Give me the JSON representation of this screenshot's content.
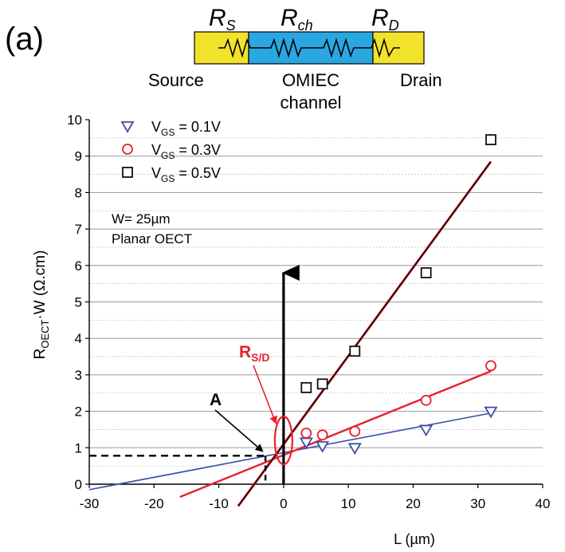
{
  "panel_label": "(a)",
  "schematic": {
    "labels": {
      "rs": "R",
      "rs_sub": "S",
      "rch": "R",
      "rch_sub": "ch",
      "rd": "R",
      "rd_sub": "D"
    },
    "source": "Source",
    "channel_line1": "OMIEC",
    "channel_line2": "channel",
    "drain": "Drain",
    "colors": {
      "contact": "#f2e32a",
      "channel": "#2aa6e0"
    }
  },
  "annotations": {
    "device_line1": "W= 25µm",
    "device_line2": "Planar OECT",
    "rsd": "R",
    "rsd_sub": "S/D",
    "point_a": "A"
  },
  "chart_data": {
    "type": "scatter",
    "xlabel": "L (µm)",
    "ylabel": {
      "main": "R",
      "sub": "OECT",
      "rest": "·W (Ω.cm)"
    },
    "xlim": [
      -30,
      40
    ],
    "ylim": [
      0,
      10
    ],
    "x_ticks": [
      "-30",
      "-20",
      "-10",
      "0",
      "10",
      "20",
      "30",
      "40"
    ],
    "y_ticks": [
      "0",
      "1",
      "2",
      "3",
      "4",
      "5",
      "6",
      "7",
      "8",
      "9",
      "10"
    ],
    "grid": true,
    "legend_position": "top-left",
    "series": [
      {
        "name": "V",
        "name_sub": "GS",
        "name_rest": " = 0.1V",
        "marker": "triangle-down",
        "color": "#3a4ea8",
        "x": [
          3.5,
          6,
          11,
          22,
          32
        ],
        "y": [
          1.15,
          1.05,
          1.0,
          1.5,
          2.0
        ],
        "fit": {
          "x": [
            -30,
            32
          ],
          "y": [
            -0.15,
            1.95
          ]
        }
      },
      {
        "name": "V",
        "name_sub": "GS",
        "name_rest": " = 0.3V",
        "marker": "circle",
        "color": "#e8212a",
        "x": [
          3.5,
          6,
          11,
          22,
          32
        ],
        "y": [
          1.4,
          1.35,
          1.45,
          2.3,
          3.25
        ],
        "fit": {
          "x": [
            -16,
            32
          ],
          "y": [
            -0.35,
            3.1
          ]
        }
      },
      {
        "name": "V",
        "name_sub": "GS",
        "name_rest": " = 0.5V",
        "marker": "square",
        "color": "#111111",
        "x": [
          3.5,
          6,
          11,
          22,
          32
        ],
        "y": [
          2.65,
          2.75,
          3.65,
          5.8,
          9.45
        ],
        "fit": {
          "x": [
            -7,
            32
          ],
          "y": [
            -0.6,
            8.85
          ]
        }
      }
    ],
    "extrapolation_point": {
      "x": -2.8,
      "y": 0.78
    }
  }
}
